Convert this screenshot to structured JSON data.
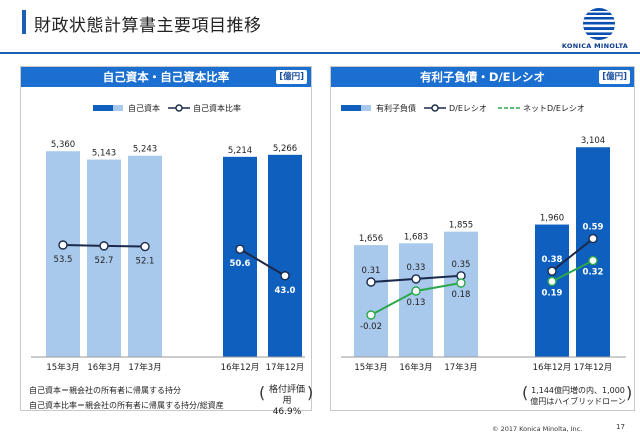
{
  "page": {
    "title": "財政状態計算書主要項目推移",
    "logo_text": "KONICA MINOLTA",
    "copyright": "© 2017 Konica Minolta, Inc.",
    "page_number": "17"
  },
  "colors": {
    "header_blue": "#1a6fd0",
    "bar_light": "#a9c9ec",
    "bar_dark": "#0f5fbf",
    "line_navy": "#1b2a4a",
    "line_green": "#2aa84a"
  },
  "chart_data": [
    {
      "type": "bar",
      "title": "自己資本・自己資本比率",
      "unit": "[億円]",
      "categories": [
        "15年3月",
        "16年3月",
        "17年3月",
        "16年12月",
        "17年12月"
      ],
      "legend": {
        "placement": "top",
        "items": [
          "自己資本",
          "自己資本比率"
        ]
      },
      "series": [
        {
          "name": "自己資本",
          "kind": "bar",
          "values": [
            5360,
            5143,
            5243,
            5214,
            5266
          ],
          "labels": [
            "5,360",
            "5,143",
            "5,243",
            "5,214",
            "5,266"
          ]
        },
        {
          "name": "自己資本比率",
          "kind": "line",
          "segments": [
            [
              0,
              1,
              2
            ],
            [
              3,
              4
            ]
          ],
          "values": [
            53.5,
            52.7,
            52.1,
            50.6,
            43.0
          ],
          "labels": [
            "53.5",
            "52.7",
            "52.1",
            "50.6",
            "43.0"
          ]
        }
      ],
      "ylim": [
        0,
        5600
      ],
      "grid": false,
      "notes": [
        "自己資本＝親会社の所有者に帰属する持分",
        "自己資本比率＝親会社の所有者に帰属する持分/総資産"
      ],
      "bracket_note": [
        "格付評価用",
        "46.9%"
      ]
    },
    {
      "type": "bar",
      "title": "有利子負債・D/Eレシオ",
      "unit": "[億円]",
      "categories": [
        "15年3月",
        "16年3月",
        "17年3月",
        "16年12月",
        "17年12月"
      ],
      "legend": {
        "placement": "top",
        "items": [
          "有利子負債",
          "D/Eレシオ",
          "ネットD/Eレシオ"
        ]
      },
      "series": [
        {
          "name": "有利子負債",
          "kind": "bar",
          "values": [
            1656,
            1683,
            1855,
            1960,
            3104
          ],
          "labels": [
            "1,656",
            "1,683",
            "1,855",
            "1,960",
            "3,104"
          ]
        },
        {
          "name": "D/Eレシオ",
          "kind": "line",
          "segments": [
            [
              0,
              1,
              2
            ],
            [
              3,
              4
            ]
          ],
          "values": [
            0.31,
            0.33,
            0.35,
            0.38,
            0.59
          ],
          "labels": [
            "0.31",
            "0.33",
            "0.35",
            "0.38",
            "0.59"
          ]
        },
        {
          "name": "ネットD/Eレシオ",
          "kind": "line",
          "dashed_legend": true,
          "segments": [
            [
              0,
              1,
              2
            ],
            [
              3,
              4
            ]
          ],
          "values": [
            -0.02,
            0.13,
            0.18,
            0.19,
            0.32
          ],
          "labels": [
            "-0.02",
            "0.13",
            "0.18",
            "0.19",
            "0.32"
          ]
        }
      ],
      "ylim": [
        0,
        3300
      ],
      "grid": false,
      "bracket_note": [
        "1,144億円増の内、1,000",
        "億円はハイブリッドローン"
      ]
    }
  ]
}
